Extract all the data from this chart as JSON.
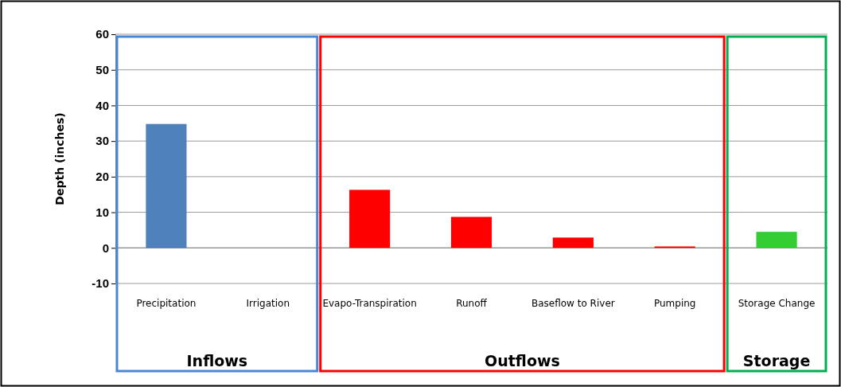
{
  "chart_data": {
    "type": "bar",
    "ylabel": "Depth (inches)",
    "categories": [
      "Precipitation",
      "Irrigation",
      "Evapo-Transpiration",
      "Runoff",
      "Baseflow to River",
      "Pumping",
      "Storage Change"
    ],
    "values": [
      34.8,
      0,
      16.3,
      8.7,
      2.9,
      0.4,
      4.5
    ],
    "colors": [
      "#4f81bd",
      "#4f81bd",
      "#ff0000",
      "#ff0000",
      "#ff0000",
      "#ff0000",
      "#33cc33"
    ],
    "ylim": [
      -10,
      60
    ],
    "yticks": [
      -10,
      0,
      10,
      20,
      30,
      40,
      50,
      60
    ],
    "grid": "y",
    "annotations": [
      "Inflows",
      "Outflows",
      "Storage"
    ]
  }
}
